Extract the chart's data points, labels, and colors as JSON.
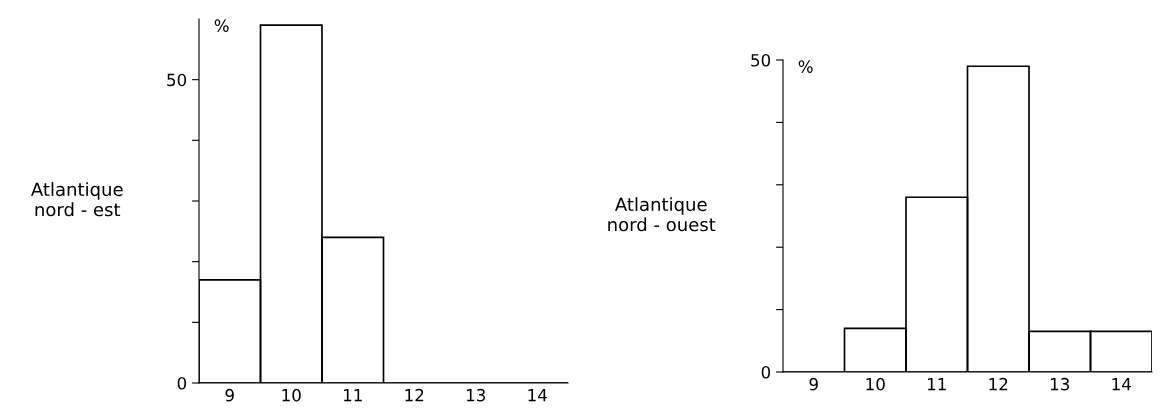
{
  "chart_data": [
    {
      "type": "histogram",
      "title": "Atlantique\nnord - est",
      "ylabel": "%",
      "bins": [
        8.5,
        9.5,
        10.5,
        11.5,
        12.5,
        13.5,
        14.5
      ],
      "values": [
        17,
        59,
        24,
        0,
        0,
        0
      ],
      "color": "#000000",
      "xlim": [
        8.5,
        14.5
      ],
      "xticks": [
        9,
        10,
        11,
        12,
        13,
        14
      ],
      "ylim": [
        0,
        60
      ],
      "yticks": [
        0,
        {
          "value": 10,
          "label": null
        },
        {
          "value": 20,
          "label": null
        },
        {
          "value": 30,
          "label": null
        },
        {
          "value": 40,
          "label": null
        },
        50
      ],
      "grid": false,
      "legend": false
    },
    {
      "type": "histogram",
      "title": "Atlantique\nnord - ouest",
      "ylabel": "%",
      "bins": [
        8.5,
        9.5,
        10.5,
        11.5,
        12.5,
        13.5,
        14.5
      ],
      "values": [
        0,
        7,
        28,
        49,
        6.5,
        6.5
      ],
      "color": "#000000",
      "xlim": [
        8.5,
        14.5
      ],
      "xticks": [
        9,
        10,
        11,
        12,
        13,
        14
      ],
      "ylim": [
        0,
        50
      ],
      "yticks": [
        0,
        {
          "value": 10,
          "label": null
        },
        {
          "value": 20,
          "label": null
        },
        {
          "value": 30,
          "label": null
        },
        {
          "value": 40,
          "label": null
        },
        50
      ],
      "grid": false,
      "legend": false
    }
  ]
}
